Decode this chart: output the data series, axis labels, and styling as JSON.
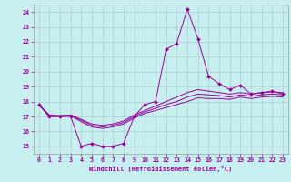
{
  "xlabel": "Windchill (Refroidissement éolien,°C)",
  "bg_color": "#c8efef",
  "grid_color": "#aacfcf",
  "line_color": "#990099",
  "xlim": [
    -0.5,
    23.5
  ],
  "ylim": [
    14.5,
    24.5
  ],
  "yticks": [
    15,
    16,
    17,
    18,
    19,
    20,
    21,
    22,
    23,
    24
  ],
  "xticks": [
    0,
    1,
    2,
    3,
    4,
    5,
    6,
    7,
    8,
    9,
    10,
    11,
    12,
    13,
    14,
    15,
    16,
    17,
    18,
    19,
    20,
    21,
    22,
    23
  ],
  "line_main": [
    17.8,
    17.0,
    17.0,
    17.0,
    15.0,
    15.2,
    15.0,
    15.0,
    15.2,
    17.0,
    17.8,
    18.0,
    21.5,
    21.9,
    24.2,
    22.2,
    19.7,
    19.2,
    18.8,
    19.1,
    18.5,
    18.6,
    18.7,
    18.5
  ],
  "line2": [
    17.8,
    17.1,
    17.05,
    17.1,
    16.8,
    16.5,
    16.4,
    16.5,
    16.7,
    17.1,
    17.4,
    17.7,
    18.0,
    18.3,
    18.6,
    18.8,
    18.7,
    18.6,
    18.5,
    18.6,
    18.5,
    18.6,
    18.65,
    18.6
  ],
  "line3": [
    17.8,
    17.05,
    17.05,
    17.1,
    16.75,
    16.4,
    16.3,
    16.4,
    16.6,
    17.0,
    17.3,
    17.55,
    17.8,
    18.0,
    18.3,
    18.5,
    18.45,
    18.4,
    18.3,
    18.45,
    18.35,
    18.45,
    18.5,
    18.45
  ],
  "line4": [
    17.8,
    17.0,
    17.0,
    17.05,
    16.65,
    16.3,
    16.2,
    16.3,
    16.5,
    16.9,
    17.2,
    17.4,
    17.6,
    17.8,
    18.0,
    18.25,
    18.2,
    18.2,
    18.15,
    18.3,
    18.2,
    18.3,
    18.35,
    18.3
  ]
}
